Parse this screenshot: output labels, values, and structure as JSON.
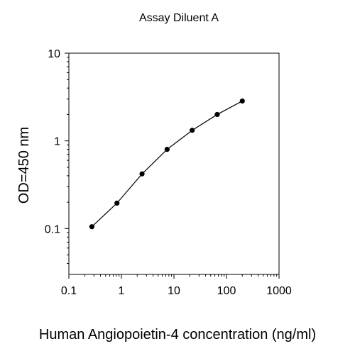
{
  "chart_data": {
    "type": "scatter",
    "title": "Assay Diluent A",
    "xlabel": "Human Angiopoietin-4 concentration (ng/ml)",
    "ylabel": "OD=450 nm",
    "x_scale": "log",
    "y_scale": "log",
    "xlim": [
      0.1,
      1000
    ],
    "ylim": [
      0.03,
      10
    ],
    "x_ticks": [
      0.1,
      1,
      10,
      100,
      1000
    ],
    "x_tick_labels": [
      "0.1",
      "1",
      "10",
      "100",
      "1000"
    ],
    "y_ticks": [
      0.1,
      1,
      10
    ],
    "y_tick_labels": [
      "0.1",
      "1",
      "10"
    ],
    "grid": false,
    "legend": "none",
    "series": [
      {
        "x": [
          0.274,
          0.823,
          2.469,
          7.407,
          22.22,
          66.67,
          200
        ],
        "y": [
          0.105,
          0.195,
          0.42,
          0.8,
          1.32,
          2.0,
          2.85
        ],
        "connected": true,
        "marker": "filled-circle",
        "color": "#000000"
      }
    ]
  }
}
